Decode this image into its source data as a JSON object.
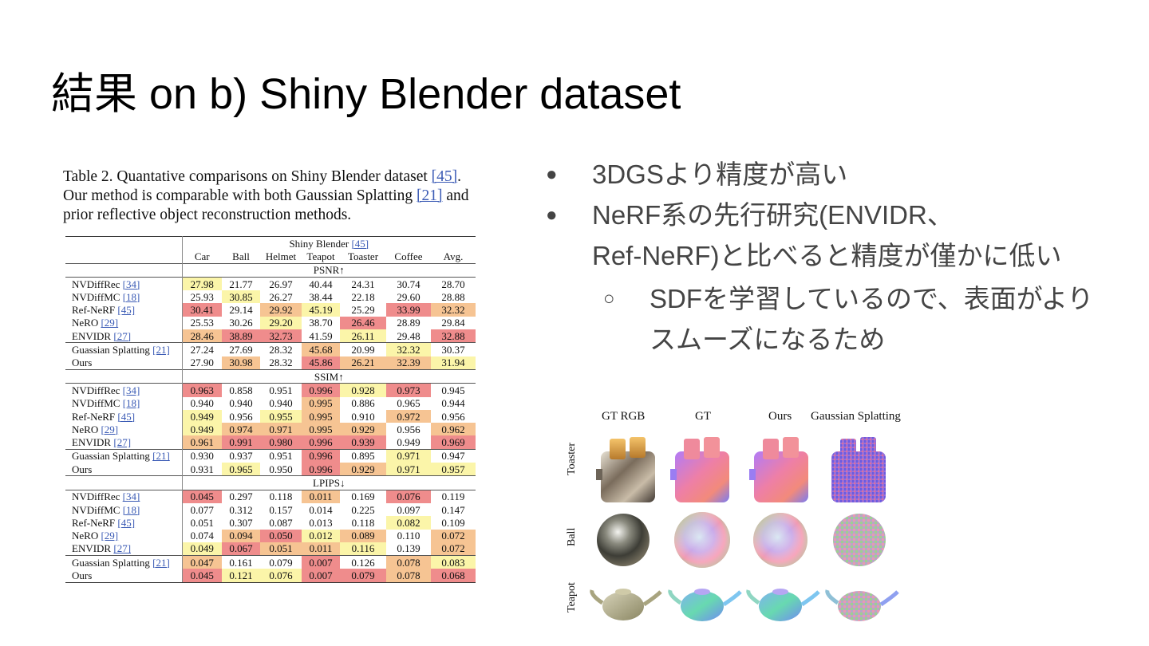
{
  "title": "結果 on b) Shiny Blender dataset",
  "caption": {
    "line1_pre": "Table 2.  Quantative comparisons on Shiny Blender dataset ",
    "line1_ref": "[45]",
    "line1_post": ".",
    "line2_pre": "Our method is comparable with both Gaussian Splatting ",
    "line2_ref": "[21]",
    "line2_post": " and",
    "line3": "prior reflective object reconstruction methods."
  },
  "table": {
    "header_group": "Shiny Blender",
    "header_group_ref": "[45]",
    "columns": [
      "Car",
      "Ball",
      "Helmet",
      "Teapot",
      "Toaster",
      "Coffee",
      "Avg."
    ],
    "sections": [
      {
        "name": "PSNR↑",
        "rows": [
          {
            "method": "NVDiffRec",
            "ref": "[34]",
            "values": [
              "27.98",
              "21.77",
              "26.97",
              "40.44",
              "24.31",
              "30.74",
              "28.70"
            ],
            "hl": [
              3,
              0,
              0,
              0,
              0,
              0,
              0
            ]
          },
          {
            "method": "NVDiffMC",
            "ref": "[18]",
            "values": [
              "25.93",
              "30.85",
              "26.27",
              "38.44",
              "22.18",
              "29.60",
              "28.88"
            ],
            "hl": [
              0,
              3,
              0,
              0,
              0,
              0,
              0
            ]
          },
          {
            "method": "Ref-NeRF",
            "ref": "[45]",
            "values": [
              "30.41",
              "29.14",
              "29.92",
              "45.19",
              "25.29",
              "33.99",
              "32.32"
            ],
            "hl": [
              1,
              0,
              2,
              3,
              0,
              1,
              2
            ]
          },
          {
            "method": "NeRO",
            "ref": "[29]",
            "values": [
              "25.53",
              "30.26",
              "29.20",
              "38.70",
              "26.46",
              "28.89",
              "29.84"
            ],
            "hl": [
              0,
              0,
              3,
              0,
              1,
              0,
              0
            ]
          },
          {
            "method": "ENVIDR",
            "ref": "[27]",
            "values": [
              "28.46",
              "38.89",
              "32.73",
              "41.59",
              "26.11",
              "29.48",
              "32.88"
            ],
            "hl": [
              2,
              1,
              1,
              0,
              3,
              0,
              1
            ]
          },
          {
            "method": "Guassian Splatting",
            "ref": "[21]",
            "values": [
              "27.24",
              "27.69",
              "28.32",
              "45.68",
              "20.99",
              "32.32",
              "30.37"
            ],
            "hl": [
              0,
              0,
              0,
              2,
              0,
              3,
              0
            ]
          },
          {
            "method": "Ours",
            "ref": "",
            "values": [
              "27.90",
              "30.98",
              "28.32",
              "45.86",
              "26.21",
              "32.39",
              "31.94"
            ],
            "hl": [
              0,
              2,
              0,
              1,
              2,
              2,
              3
            ]
          }
        ]
      },
      {
        "name": "SSIM↑",
        "rows": [
          {
            "method": "NVDiffRec",
            "ref": "[34]",
            "values": [
              "0.963",
              "0.858",
              "0.951",
              "0.996",
              "0.928",
              "0.973",
              "0.945"
            ],
            "hl": [
              1,
              0,
              0,
              1,
              3,
              1,
              0
            ]
          },
          {
            "method": "NVDiffMC",
            "ref": "[18]",
            "values": [
              "0.940",
              "0.940",
              "0.940",
              "0.995",
              "0.886",
              "0.965",
              "0.944"
            ],
            "hl": [
              0,
              0,
              0,
              2,
              0,
              0,
              0
            ]
          },
          {
            "method": "Ref-NeRF",
            "ref": "[45]",
            "values": [
              "0.949",
              "0.956",
              "0.955",
              "0.995",
              "0.910",
              "0.972",
              "0.956"
            ],
            "hl": [
              3,
              0,
              3,
              2,
              0,
              2,
              0
            ]
          },
          {
            "method": "NeRO",
            "ref": "[29]",
            "values": [
              "0.949",
              "0.974",
              "0.971",
              "0.995",
              "0.929",
              "0.956",
              "0.962"
            ],
            "hl": [
              3,
              2,
              2,
              2,
              2,
              0,
              2
            ]
          },
          {
            "method": "ENVIDR",
            "ref": "[27]",
            "values": [
              "0.961",
              "0.991",
              "0.980",
              "0.996",
              "0.939",
              "0.949",
              "0.969"
            ],
            "hl": [
              2,
              1,
              1,
              1,
              1,
              0,
              1
            ]
          },
          {
            "method": "Guassian Splatting",
            "ref": "[21]",
            "values": [
              "0.930",
              "0.937",
              "0.951",
              "0.996",
              "0.895",
              "0.971",
              "0.947"
            ],
            "hl": [
              0,
              0,
              0,
              1,
              0,
              3,
              0
            ]
          },
          {
            "method": "Ours",
            "ref": "",
            "values": [
              "0.931",
              "0.965",
              "0.950",
              "0.996",
              "0.929",
              "0.971",
              "0.957"
            ],
            "hl": [
              0,
              3,
              0,
              1,
              2,
              3,
              3
            ]
          }
        ]
      },
      {
        "name": "LPIPS↓",
        "rows": [
          {
            "method": "NVDiffRec",
            "ref": "[34]",
            "values": [
              "0.045",
              "0.297",
              "0.118",
              "0.011",
              "0.169",
              "0.076",
              "0.119"
            ],
            "hl": [
              1,
              0,
              0,
              2,
              0,
              1,
              0
            ]
          },
          {
            "method": "NVDiffMC",
            "ref": "[18]",
            "values": [
              "0.077",
              "0.312",
              "0.157",
              "0.014",
              "0.225",
              "0.097",
              "0.147"
            ],
            "hl": [
              0,
              0,
              0,
              0,
              0,
              0,
              0
            ]
          },
          {
            "method": "Ref-NeRF",
            "ref": "[45]",
            "values": [
              "0.051",
              "0.307",
              "0.087",
              "0.013",
              "0.118",
              "0.082",
              "0.109"
            ],
            "hl": [
              0,
              0,
              0,
              0,
              0,
              3,
              0
            ]
          },
          {
            "method": "NeRO",
            "ref": "[29]",
            "values": [
              "0.074",
              "0.094",
              "0.050",
              "0.012",
              "0.089",
              "0.110",
              "0.072"
            ],
            "hl": [
              0,
              2,
              1,
              3,
              2,
              0,
              2
            ]
          },
          {
            "method": "ENVIDR",
            "ref": "[27]",
            "values": [
              "0.049",
              "0.067",
              "0.051",
              "0.011",
              "0.116",
              "0.139",
              "0.072"
            ],
            "hl": [
              3,
              1,
              2,
              2,
              3,
              0,
              2
            ]
          },
          {
            "method": "Guassian Splatting",
            "ref": "[21]",
            "values": [
              "0.047",
              "0.161",
              "0.079",
              "0.007",
              "0.126",
              "0.078",
              "0.083"
            ],
            "hl": [
              2,
              0,
              0,
              1,
              0,
              2,
              3
            ]
          },
          {
            "method": "Ours",
            "ref": "",
            "values": [
              "0.045",
              "0.121",
              "0.076",
              "0.007",
              "0.079",
              "0.078",
              "0.068"
            ],
            "hl": [
              1,
              3,
              3,
              1,
              1,
              2,
              1
            ]
          }
        ]
      }
    ]
  },
  "bullets": {
    "b1": "3DGSより精度が高い",
    "b2_line1": "NeRF系の先行研究(ENVIDR、",
    "b2_line2": "Ref-NeRF)と比べると精度が僅かに低い",
    "sub_line1": "SDFを学習しているので、表面がより",
    "sub_line2": "スムーズになるため",
    "dot_glyph": "●",
    "ring_glyph": "○"
  },
  "figure": {
    "columns": [
      "GT RGB",
      "GT",
      "Ours",
      "Gaussian Splatting"
    ],
    "rows": [
      "Toaster",
      "Ball",
      "Teapot"
    ]
  },
  "colors": {
    "rank1": "#ef8c8c",
    "rank2": "#f6c493",
    "rank3": "#fbf5a9",
    "link": "#3b5bb5",
    "bullet_text": "#444444"
  }
}
